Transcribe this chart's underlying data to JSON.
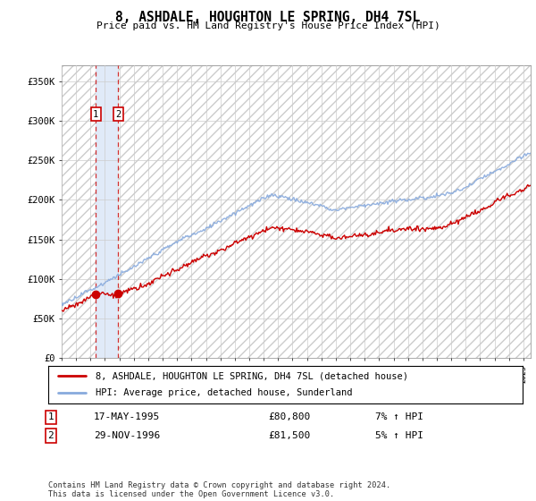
{
  "title": "8, ASHDALE, HOUGHTON LE SPRING, DH4 7SL",
  "subtitle": "Price paid vs. HM Land Registry's House Price Index (HPI)",
  "ylim": [
    0,
    370000
  ],
  "xlim_start": 1993.0,
  "xlim_end": 2025.5,
  "transaction1_date": 1995.37,
  "transaction1_value": 80800,
  "transaction2_date": 1996.92,
  "transaction2_value": 81500,
  "legend_line1": "8, ASHDALE, HOUGHTON LE SPRING, DH4 7SL (detached house)",
  "legend_line2": "HPI: Average price, detached house, Sunderland",
  "table_row1": [
    "1",
    "17-MAY-1995",
    "£80,800",
    "7% ↑ HPI"
  ],
  "table_row2": [
    "2",
    "29-NOV-1996",
    "£81,500",
    "5% ↑ HPI"
  ],
  "footnote": "Contains HM Land Registry data © Crown copyright and database right 2024.\nThis data is licensed under the Open Government Licence v3.0.",
  "price_color": "#cc0000",
  "hpi_color": "#88aadd",
  "grid_color": "#cccccc",
  "box_bg": "#dde8f8",
  "hatch_edgecolor": "#cccccc",
  "ytick_vals": [
    0,
    50000,
    100000,
    150000,
    200000,
    250000,
    300000,
    350000
  ],
  "ytick_labels": [
    "£0",
    "£50K",
    "£100K",
    "£150K",
    "£200K",
    "£250K",
    "£300K",
    "£350K"
  ]
}
